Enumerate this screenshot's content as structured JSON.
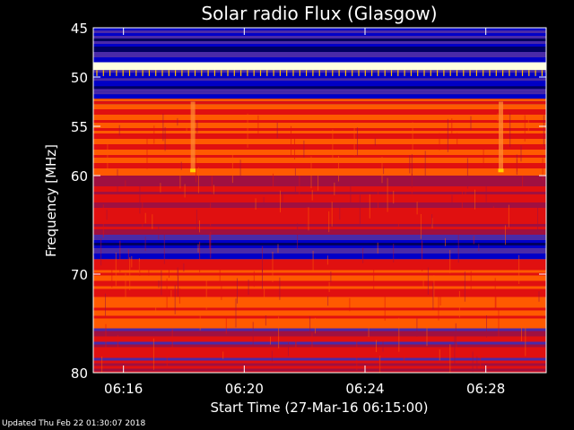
{
  "chart_data": {
    "type": "heatmap",
    "title": "Solar radio Flux (Glasgow)",
    "xlabel": "Start Time (27-Mar-16 06:15:00)",
    "ylabel": "Frequency [MHz]",
    "x_ticks": [
      "06:16",
      "06:20",
      "06:24",
      "06:28"
    ],
    "x_tick_minutes": [
      16,
      20,
      24,
      28
    ],
    "x_range_minutes": [
      15.0,
      30.0
    ],
    "y_ticks": [
      45,
      50,
      55,
      60,
      70,
      80
    ],
    "y_range": [
      45,
      80
    ],
    "bands": [
      {
        "from": 45.0,
        "to": 48.5,
        "level": "low"
      },
      {
        "from": 48.5,
        "to": 49.3,
        "level": "very high"
      },
      {
        "from": 49.3,
        "to": 52.2,
        "level": "low"
      },
      {
        "from": 52.2,
        "to": 53.0,
        "level": "high"
      },
      {
        "from": 53.0,
        "to": 60.0,
        "level": "high"
      },
      {
        "from": 60.0,
        "to": 66.0,
        "level": "medium"
      },
      {
        "from": 66.0,
        "to": 68.5,
        "level": "low"
      },
      {
        "from": 68.5,
        "to": 75.5,
        "level": "high"
      },
      {
        "from": 75.5,
        "to": 80.0,
        "level": "medium-low"
      }
    ],
    "bursts_minutes": [
      18.3,
      28.5
    ],
    "colormap": [
      "#000060",
      "#0000c8",
      "#4a2aa8",
      "#a01040",
      "#e01010",
      "#ff5a00",
      "#ffc000",
      "#ffffe0"
    ]
  },
  "footer": "Updated Thu Feb 22 01:30:07 2018"
}
